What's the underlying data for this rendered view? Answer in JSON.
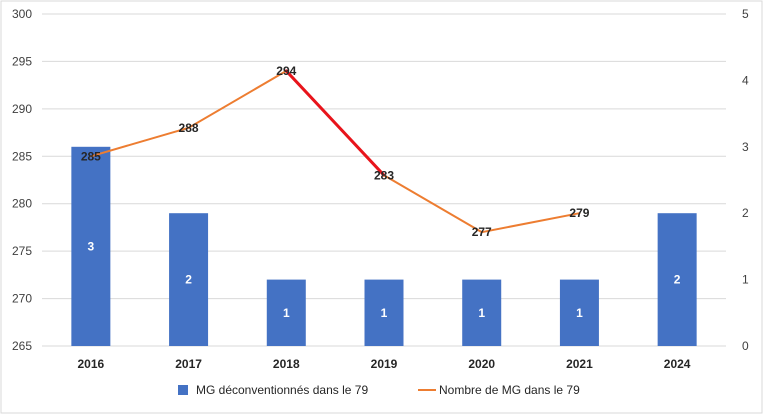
{
  "chart_data": {
    "type": "bar",
    "categories": [
      "2016",
      "2017",
      "2018",
      "2019",
      "2020",
      "2021",
      "2024"
    ],
    "series": [
      {
        "name": "MG déconventionnés dans le 79",
        "kind": "bar",
        "axis": "secondary",
        "color": "#4472C4",
        "values": [
          3,
          2,
          1,
          1,
          1,
          1,
          2
        ]
      },
      {
        "name": "Nombre de MG dans le 79",
        "kind": "line",
        "axis": "primary",
        "color": "#ED7D31",
        "highlight_color": "#E8141B",
        "highlight_segments": [
          [
            2,
            3
          ]
        ],
        "values": [
          285,
          288,
          294,
          283,
          277,
          279,
          null
        ]
      }
    ],
    "y_primary": {
      "min": 265,
      "max": 300,
      "ticks": [
        "265",
        "270",
        "275",
        "280",
        "285",
        "290",
        "295",
        "300"
      ]
    },
    "y_secondary": {
      "min": 0,
      "max": 5,
      "ticks": [
        "0",
        "1",
        "2",
        "3",
        "4",
        "5"
      ]
    },
    "grid": true,
    "legend_position": "bottom"
  }
}
